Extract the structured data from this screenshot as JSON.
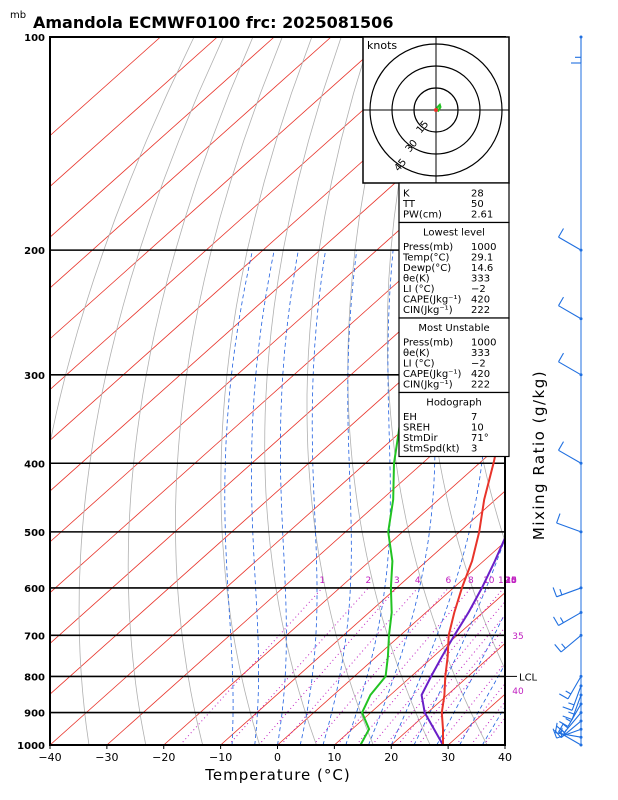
{
  "title": "Amandola ECMWF0100  frc: 2025081506",
  "unit_label": "mb",
  "chart_data": {
    "type": "skew-t",
    "xlabel": "Temperature (°C)",
    "ylabel_right": "Mixing Ratio (g/kg)",
    "x_ticks": [
      -40,
      -30,
      -20,
      -10,
      0,
      10,
      20,
      30,
      40
    ],
    "y_ticks": [
      100,
      200,
      300,
      400,
      500,
      600,
      700,
      800,
      900,
      1000
    ],
    "xlim": [
      -40,
      40
    ],
    "ylim": [
      1000,
      100
    ],
    "y_scale": "log",
    "grid": true,
    "mixing_ratio_labels": [
      "1",
      "2",
      "3",
      "4",
      "6",
      "8",
      "10",
      "12",
      "14",
      "16",
      "18",
      "20",
      "25",
      "30",
      "35",
      "40"
    ],
    "temperature_profile": {
      "name": "Temperature",
      "color": "#e8332a",
      "points": [
        [
          1000,
          29.1
        ],
        [
          950,
          26
        ],
        [
          900,
          22.5
        ],
        [
          850,
          19.5
        ],
        [
          800,
          16
        ],
        [
          750,
          12.5
        ],
        [
          700,
          8.5
        ],
        [
          650,
          5
        ],
        [
          600,
          1.5
        ],
        [
          550,
          -2
        ],
        [
          500,
          -6.5
        ],
        [
          450,
          -12
        ],
        [
          400,
          -17.5
        ],
        [
          350,
          -24
        ],
        [
          300,
          -31.5
        ],
        [
          250,
          -40.5
        ],
        [
          200,
          -50
        ],
        [
          150,
          -59
        ],
        [
          100,
          -65
        ]
      ]
    },
    "dewpoint_profile": {
      "name": "Dewpoint",
      "color": "#22c322",
      "points": [
        [
          1000,
          14.6
        ],
        [
          950,
          13
        ],
        [
          900,
          8.5
        ],
        [
          850,
          6.5
        ],
        [
          800,
          5.5
        ],
        [
          750,
          2
        ],
        [
          700,
          -2
        ],
        [
          650,
          -6
        ],
        [
          600,
          -11
        ],
        [
          550,
          -16
        ],
        [
          500,
          -22.5
        ],
        [
          450,
          -28
        ],
        [
          400,
          -35
        ],
        [
          350,
          -42
        ],
        [
          300,
          -50
        ],
        [
          250,
          -60
        ],
        [
          200,
          -68
        ],
        [
          150,
          -76
        ],
        [
          100,
          -86
        ]
      ]
    },
    "parcel_profile": {
      "name": "Parcel",
      "color": "#6a1fc8",
      "points": [
        [
          1000,
          29.1
        ],
        [
          900,
          19.5
        ],
        [
          850,
          15.5
        ],
        [
          800,
          13.5
        ],
        [
          750,
          11.5
        ],
        [
          700,
          9.5
        ],
        [
          650,
          7.5
        ],
        [
          600,
          5
        ],
        [
          550,
          2
        ],
        [
          500,
          -1.5
        ],
        [
          450,
          -5.5
        ],
        [
          400,
          -11
        ],
        [
          350,
          -17.5
        ],
        [
          300,
          -26
        ],
        [
          250,
          -36
        ],
        [
          200,
          -49
        ],
        [
          150,
          -64
        ],
        [
          100,
          -83
        ]
      ]
    },
    "lcl": {
      "label": "LCL",
      "pressure": 800
    },
    "wind_barbs": [
      {
        "p": 1000,
        "dir": 300,
        "spd": 5
      },
      {
        "p": 975,
        "dir": 280,
        "spd": 5
      },
      {
        "p": 950,
        "dir": 250,
        "spd": 5
      },
      {
        "p": 925,
        "dir": 230,
        "spd": 5
      },
      {
        "p": 900,
        "dir": 220,
        "spd": 5
      },
      {
        "p": 875,
        "dir": 210,
        "spd": 5
      },
      {
        "p": 850,
        "dir": 200,
        "spd": 5
      },
      {
        "p": 825,
        "dir": 200,
        "spd": 5
      },
      {
        "p": 800,
        "dir": 210,
        "spd": 5
      },
      {
        "p": 700,
        "dir": 230,
        "spd": 5
      },
      {
        "p": 650,
        "dir": 240,
        "spd": 5
      },
      {
        "p": 600,
        "dir": 250,
        "spd": 5
      },
      {
        "p": 500,
        "dir": 290,
        "spd": 10
      },
      {
        "p": 400,
        "dir": 300,
        "spd": 10
      },
      {
        "p": 300,
        "dir": 300,
        "spd": 10
      },
      {
        "p": 250,
        "dir": 300,
        "spd": 10
      },
      {
        "p": 200,
        "dir": 300,
        "spd": 10
      },
      {
        "p": 100,
        "dir": 180,
        "spd": 5
      }
    ],
    "hodograph": {
      "unit": "knots",
      "ring_labels": [
        "15",
        "30",
        "45"
      ],
      "points_uv": [
        [
          0,
          0
        ],
        [
          1.5,
          0.5
        ],
        [
          3,
          -2
        ],
        [
          2.5,
          -3.5
        ],
        [
          1.5,
          -2.5
        ],
        [
          0.5,
          -1
        ]
      ]
    }
  },
  "indices": {
    "top": [
      {
        "label": "K",
        "value": "28"
      },
      {
        "label": "TT",
        "value": "50"
      },
      {
        "label": "PW(cm)",
        "value": "2.61"
      }
    ],
    "lowest_level": {
      "header": "Lowest level",
      "rows": [
        {
          "label": "Press(mb)",
          "value": "1000"
        },
        {
          "label": "Temp(°C)",
          "value": "29.1"
        },
        {
          "label": "Dewp(°C)",
          "value": "14.6"
        },
        {
          "label": "θe(K)",
          "value": "333"
        },
        {
          "label": "LI (°C)",
          "value": "−2"
        },
        {
          "label": "CAPE(Jkg⁻¹)",
          "value": "420"
        },
        {
          "label": "CIN(Jkg⁻¹)",
          "value": "222"
        }
      ]
    },
    "most_unstable": {
      "header": "Most Unstable",
      "rows": [
        {
          "label": "Press(mb)",
          "value": "1000"
        },
        {
          "label": "θe(K)",
          "value": "333"
        },
        {
          "label": "LI (°C)",
          "value": "−2"
        },
        {
          "label": "CAPE(Jkg⁻¹)",
          "value": "420"
        },
        {
          "label": "CIN(Jkg⁻¹)",
          "value": "222"
        }
      ]
    },
    "hodograph_box": {
      "header": "Hodograph",
      "rows": [
        {
          "label": "EH",
          "value": "7"
        },
        {
          "label": "SREH",
          "value": "10"
        },
        {
          "label": "StmDir",
          "value": "71°"
        },
        {
          "label": "StmSpd(kt)",
          "value": "3"
        }
      ]
    }
  },
  "colors": {
    "isotherm": "#e8332a",
    "dry_adiabat": "#b0b0b0",
    "moist_adiabat": "#1f5fe0",
    "mixing_ratio": "#c020c0",
    "wind": "#1f6fe0"
  }
}
